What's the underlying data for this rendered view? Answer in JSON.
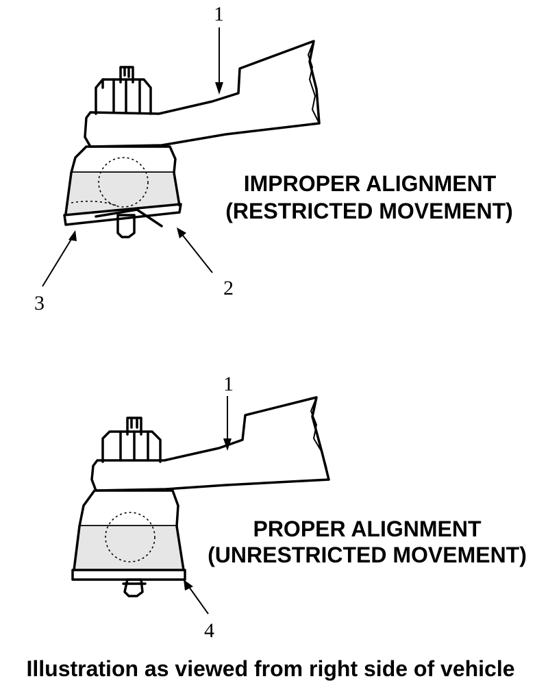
{
  "figure": {
    "improper": {
      "title_line1": "IMPROPER ALIGNMENT",
      "title_line2": "(RESTRICTED MOVEMENT)",
      "callouts": [
        "1",
        "2",
        "3"
      ]
    },
    "proper": {
      "title_line1": "PROPER ALIGNMENT",
      "title_line2": "(UNRESTRICTED MOVEMENT)",
      "callouts": [
        "1",
        "4"
      ]
    },
    "caption": "Illustration as viewed from right side of vehicle"
  }
}
